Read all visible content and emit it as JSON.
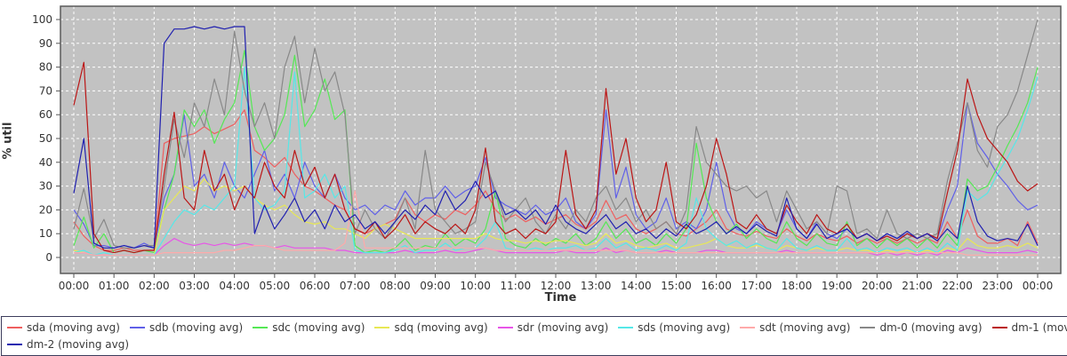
{
  "chart_data": {
    "type": "line",
    "title": "",
    "xlabel": "Time",
    "ylabel": "% util",
    "ylim": [
      0,
      100
    ],
    "grid": true,
    "legend_position": "bottom",
    "plot_bg_color": "#c2c2c2",
    "grid_color": "#ffffff",
    "plot_border_color": "#5a5a5a",
    "tick_label_color": "#333333",
    "y_ticks": [
      0,
      10,
      20,
      30,
      40,
      50,
      60,
      70,
      80,
      90,
      100
    ],
    "x_tick_labels": [
      "00:00",
      "01:00",
      "02:00",
      "03:00",
      "04:00",
      "05:00",
      "06:00",
      "07:00",
      "08:00",
      "09:00",
      "10:00",
      "11:00",
      "12:00",
      "13:00",
      "14:00",
      "15:00",
      "16:00",
      "17:00",
      "18:00",
      "19:00",
      "20:00",
      "21:00",
      "22:00",
      "23:00",
      "00:00"
    ],
    "x_hours": 24,
    "sample_interval_hours": 0.25,
    "legend_row_split": 9,
    "series": [
      {
        "name": "sda (moving avg)",
        "color": "#ee5f5f",
        "values": [
          15,
          9,
          5,
          3,
          3,
          4,
          3,
          3,
          3,
          48,
          50,
          51,
          52,
          55,
          52,
          54,
          56,
          62,
          45,
          42,
          38,
          42,
          35,
          30,
          28,
          25,
          22,
          20,
          12,
          10,
          12,
          14,
          16,
          25,
          18,
          15,
          18,
          16,
          20,
          18,
          22,
          28,
          20,
          16,
          18,
          15,
          17,
          14,
          16,
          18,
          14,
          12,
          15,
          24,
          16,
          18,
          12,
          10,
          12,
          15,
          10,
          9,
          12,
          15,
          20,
          12,
          10,
          9,
          11,
          9,
          8,
          12,
          9,
          7,
          10,
          8,
          7,
          9,
          6,
          8,
          6,
          8,
          6,
          8,
          6,
          8,
          6,
          15,
          8,
          20,
          9,
          6,
          6,
          8,
          5,
          15,
          6
        ]
      },
      {
        "name": "sdb (moving avg)",
        "color": "#6060e8",
        "values": [
          20,
          14,
          5,
          5,
          4,
          5,
          4,
          6,
          4,
          25,
          35,
          60,
          30,
          35,
          25,
          40,
          30,
          25,
          35,
          45,
          28,
          35,
          25,
          40,
          30,
          25,
          35,
          25,
          20,
          22,
          18,
          22,
          20,
          28,
          22,
          25,
          25,
          30,
          25,
          28,
          30,
          42,
          25,
          22,
          20,
          18,
          22,
          18,
          20,
          25,
          15,
          12,
          18,
          62,
          25,
          38,
          18,
          12,
          15,
          25,
          12,
          15,
          12,
          20,
          40,
          20,
          12,
          10,
          15,
          12,
          10,
          20,
          12,
          8,
          15,
          10,
          8,
          12,
          8,
          10,
          7,
          10,
          8,
          10,
          8,
          10,
          8,
          20,
          30,
          65,
          48,
          42,
          35,
          30,
          24,
          20,
          22
        ]
      },
      {
        "name": "sdc (moving avg)",
        "color": "#55e855",
        "values": [
          5,
          17,
          4,
          10,
          2,
          3,
          2,
          3,
          2,
          20,
          35,
          62,
          55,
          62,
          48,
          58,
          65,
          87,
          55,
          45,
          50,
          60,
          85,
          55,
          62,
          75,
          58,
          62,
          5,
          2,
          3,
          2,
          4,
          8,
          3,
          5,
          4,
          10,
          5,
          8,
          6,
          12,
          28,
          8,
          5,
          4,
          8,
          5,
          8,
          6,
          10,
          5,
          8,
          15,
          8,
          12,
          6,
          8,
          5,
          10,
          6,
          12,
          48,
          25,
          15,
          10,
          14,
          8,
          12,
          8,
          6,
          15,
          8,
          5,
          10,
          6,
          5,
          15,
          5,
          8,
          4,
          8,
          5,
          8,
          4,
          8,
          4,
          10,
          5,
          33,
          28,
          30,
          38,
          47,
          55,
          65,
          80
        ]
      },
      {
        "name": "sdq (moving avg)",
        "color": "#e8e855",
        "values": [
          3,
          2,
          1,
          1,
          1,
          1,
          1,
          1,
          1,
          20,
          25,
          30,
          28,
          33,
          28,
          30,
          28,
          30,
          25,
          22,
          20,
          22,
          18,
          15,
          14,
          15,
          12,
          12,
          10,
          8,
          12,
          14,
          12,
          10,
          8,
          8,
          8,
          8,
          8,
          8,
          8,
          10,
          8,
          7,
          7,
          6,
          7,
          6,
          7,
          7,
          6,
          5,
          6,
          10,
          6,
          7,
          5,
          4,
          5,
          6,
          4,
          4,
          5,
          6,
          8,
          5,
          4,
          4,
          5,
          4,
          3,
          5,
          4,
          3,
          4,
          3,
          3,
          4,
          3,
          3,
          2,
          3,
          2,
          3,
          2,
          3,
          2,
          4,
          3,
          8,
          5,
          4,
          4,
          5,
          4,
          6,
          4
        ]
      },
      {
        "name": "sdr (moving avg)",
        "color": "#e855e8",
        "values": [
          2,
          2,
          1,
          1,
          1,
          1,
          1,
          1,
          1,
          5,
          8,
          6,
          5,
          6,
          5,
          6,
          5,
          6,
          5,
          5,
          4,
          5,
          4,
          4,
          4,
          4,
          3,
          3,
          2,
          2,
          2,
          2,
          2,
          3,
          2,
          2,
          2,
          3,
          2,
          2,
          3,
          4,
          3,
          2,
          2,
          2,
          2,
          2,
          2,
          3,
          2,
          2,
          2,
          4,
          2,
          3,
          2,
          2,
          2,
          3,
          2,
          2,
          2,
          3,
          3,
          2,
          2,
          2,
          2,
          2,
          2,
          3,
          2,
          2,
          2,
          2,
          2,
          2,
          2,
          2,
          1,
          2,
          1,
          2,
          1,
          2,
          1,
          3,
          2,
          4,
          3,
          2,
          2,
          2,
          2,
          3,
          2
        ]
      },
      {
        "name": "sds (moving avg)",
        "color": "#55e8e8",
        "values": [
          2,
          3,
          1,
          2,
          1,
          1,
          1,
          1,
          1,
          8,
          15,
          20,
          18,
          22,
          20,
          25,
          30,
          80,
          25,
          20,
          22,
          28,
          78,
          25,
          28,
          35,
          25,
          30,
          3,
          2,
          2,
          2,
          3,
          5,
          2,
          3,
          3,
          6,
          3,
          4,
          4,
          8,
          15,
          4,
          3,
          3,
          4,
          3,
          4,
          4,
          5,
          3,
          4,
          8,
          4,
          6,
          3,
          4,
          3,
          5,
          3,
          6,
          25,
          12,
          8,
          5,
          7,
          4,
          6,
          4,
          3,
          8,
          4,
          3,
          5,
          3,
          3,
          8,
          3,
          4,
          2,
          4,
          3,
          4,
          2,
          4,
          2,
          6,
          3,
          28,
          24,
          27,
          35,
          42,
          50,
          62,
          76
        ]
      },
      {
        "name": "sdt (moving avg)",
        "color": "#ffaaaa",
        "values": [
          2,
          2,
          1,
          1,
          1,
          1,
          1,
          1,
          1,
          2,
          2,
          2,
          2,
          2,
          2,
          3,
          3,
          4,
          5,
          5,
          4,
          3,
          3,
          3,
          3,
          3,
          3,
          6,
          28,
          4,
          4,
          4,
          4,
          4,
          4,
          4,
          4,
          4,
          4,
          4,
          4,
          4,
          3,
          3,
          3,
          3,
          3,
          3,
          3,
          3,
          3,
          3,
          3,
          3,
          3,
          3,
          2,
          2,
          2,
          2,
          2,
          2,
          2,
          2,
          2,
          2,
          2,
          2,
          2,
          2,
          2,
          2,
          2,
          2,
          2,
          2,
          2,
          2,
          2,
          2,
          2,
          2,
          2,
          2,
          2,
          2,
          2,
          2,
          2,
          1,
          1,
          1,
          1,
          1,
          1,
          1,
          1
        ]
      },
      {
        "name": "dm-0 (moving avg)",
        "color": "#888888",
        "values": [
          12,
          29,
          8,
          16,
          5,
          4,
          4,
          5,
          5,
          30,
          58,
          42,
          65,
          55,
          75,
          60,
          95,
          70,
          55,
          65,
          50,
          80,
          93,
          65,
          88,
          70,
          78,
          60,
          10,
          20,
          12,
          8,
          15,
          25,
          12,
          45,
          20,
          15,
          10,
          12,
          15,
          40,
          28,
          15,
          20,
          25,
          15,
          10,
          18,
          12,
          20,
          15,
          25,
          30,
          20,
          25,
          15,
          20,
          12,
          15,
          10,
          20,
          55,
          40,
          35,
          30,
          28,
          30,
          25,
          28,
          15,
          28,
          20,
          12,
          15,
          10,
          30,
          28,
          10,
          12,
          8,
          20,
          10,
          8,
          10,
          8,
          10,
          32,
          48,
          65,
          45,
          38,
          55,
          60,
          70,
          85,
          100
        ]
      },
      {
        "name": "dm-1 (moving avg)",
        "color": "#bb1515",
        "values": [
          64,
          82,
          10,
          3,
          2,
          3,
          2,
          3,
          3,
          35,
          61,
          25,
          20,
          45,
          28,
          35,
          20,
          30,
          25,
          40,
          30,
          25,
          45,
          30,
          38,
          25,
          35,
          20,
          12,
          10,
          15,
          8,
          12,
          18,
          10,
          15,
          12,
          10,
          14,
          10,
          20,
          46,
          15,
          10,
          12,
          8,
          12,
          10,
          15,
          45,
          18,
          12,
          20,
          71,
          35,
          50,
          25,
          15,
          20,
          40,
          15,
          12,
          18,
          30,
          50,
          35,
          15,
          12,
          18,
          12,
          10,
          22,
          15,
          10,
          18,
          12,
          10,
          14,
          8,
          10,
          7,
          9,
          7,
          10,
          8,
          10,
          8,
          27,
          45,
          75,
          60,
          50,
          45,
          40,
          32,
          28,
          31
        ]
      },
      {
        "name": "dm-2 (moving avg)",
        "color": "#2020b0",
        "values": [
          27,
          50,
          6,
          4,
          4,
          5,
          4,
          5,
          4,
          90,
          96,
          96,
          97,
          96,
          97,
          96,
          97,
          97,
          10,
          22,
          12,
          18,
          25,
          15,
          20,
          12,
          22,
          15,
          18,
          12,
          15,
          10,
          15,
          20,
          16,
          22,
          18,
          28,
          20,
          24,
          32,
          25,
          28,
          18,
          20,
          16,
          20,
          14,
          22,
          15,
          12,
          10,
          14,
          18,
          12,
          15,
          10,
          12,
          8,
          12,
          9,
          14,
          10,
          12,
          15,
          10,
          13,
          10,
          14,
          11,
          9,
          25,
          12,
          8,
          14,
          8,
          10,
          12,
          8,
          10,
          7,
          10,
          8,
          11,
          8,
          10,
          7,
          12,
          8,
          30,
          15,
          9,
          7,
          8,
          7,
          14,
          5
        ]
      }
    ]
  }
}
